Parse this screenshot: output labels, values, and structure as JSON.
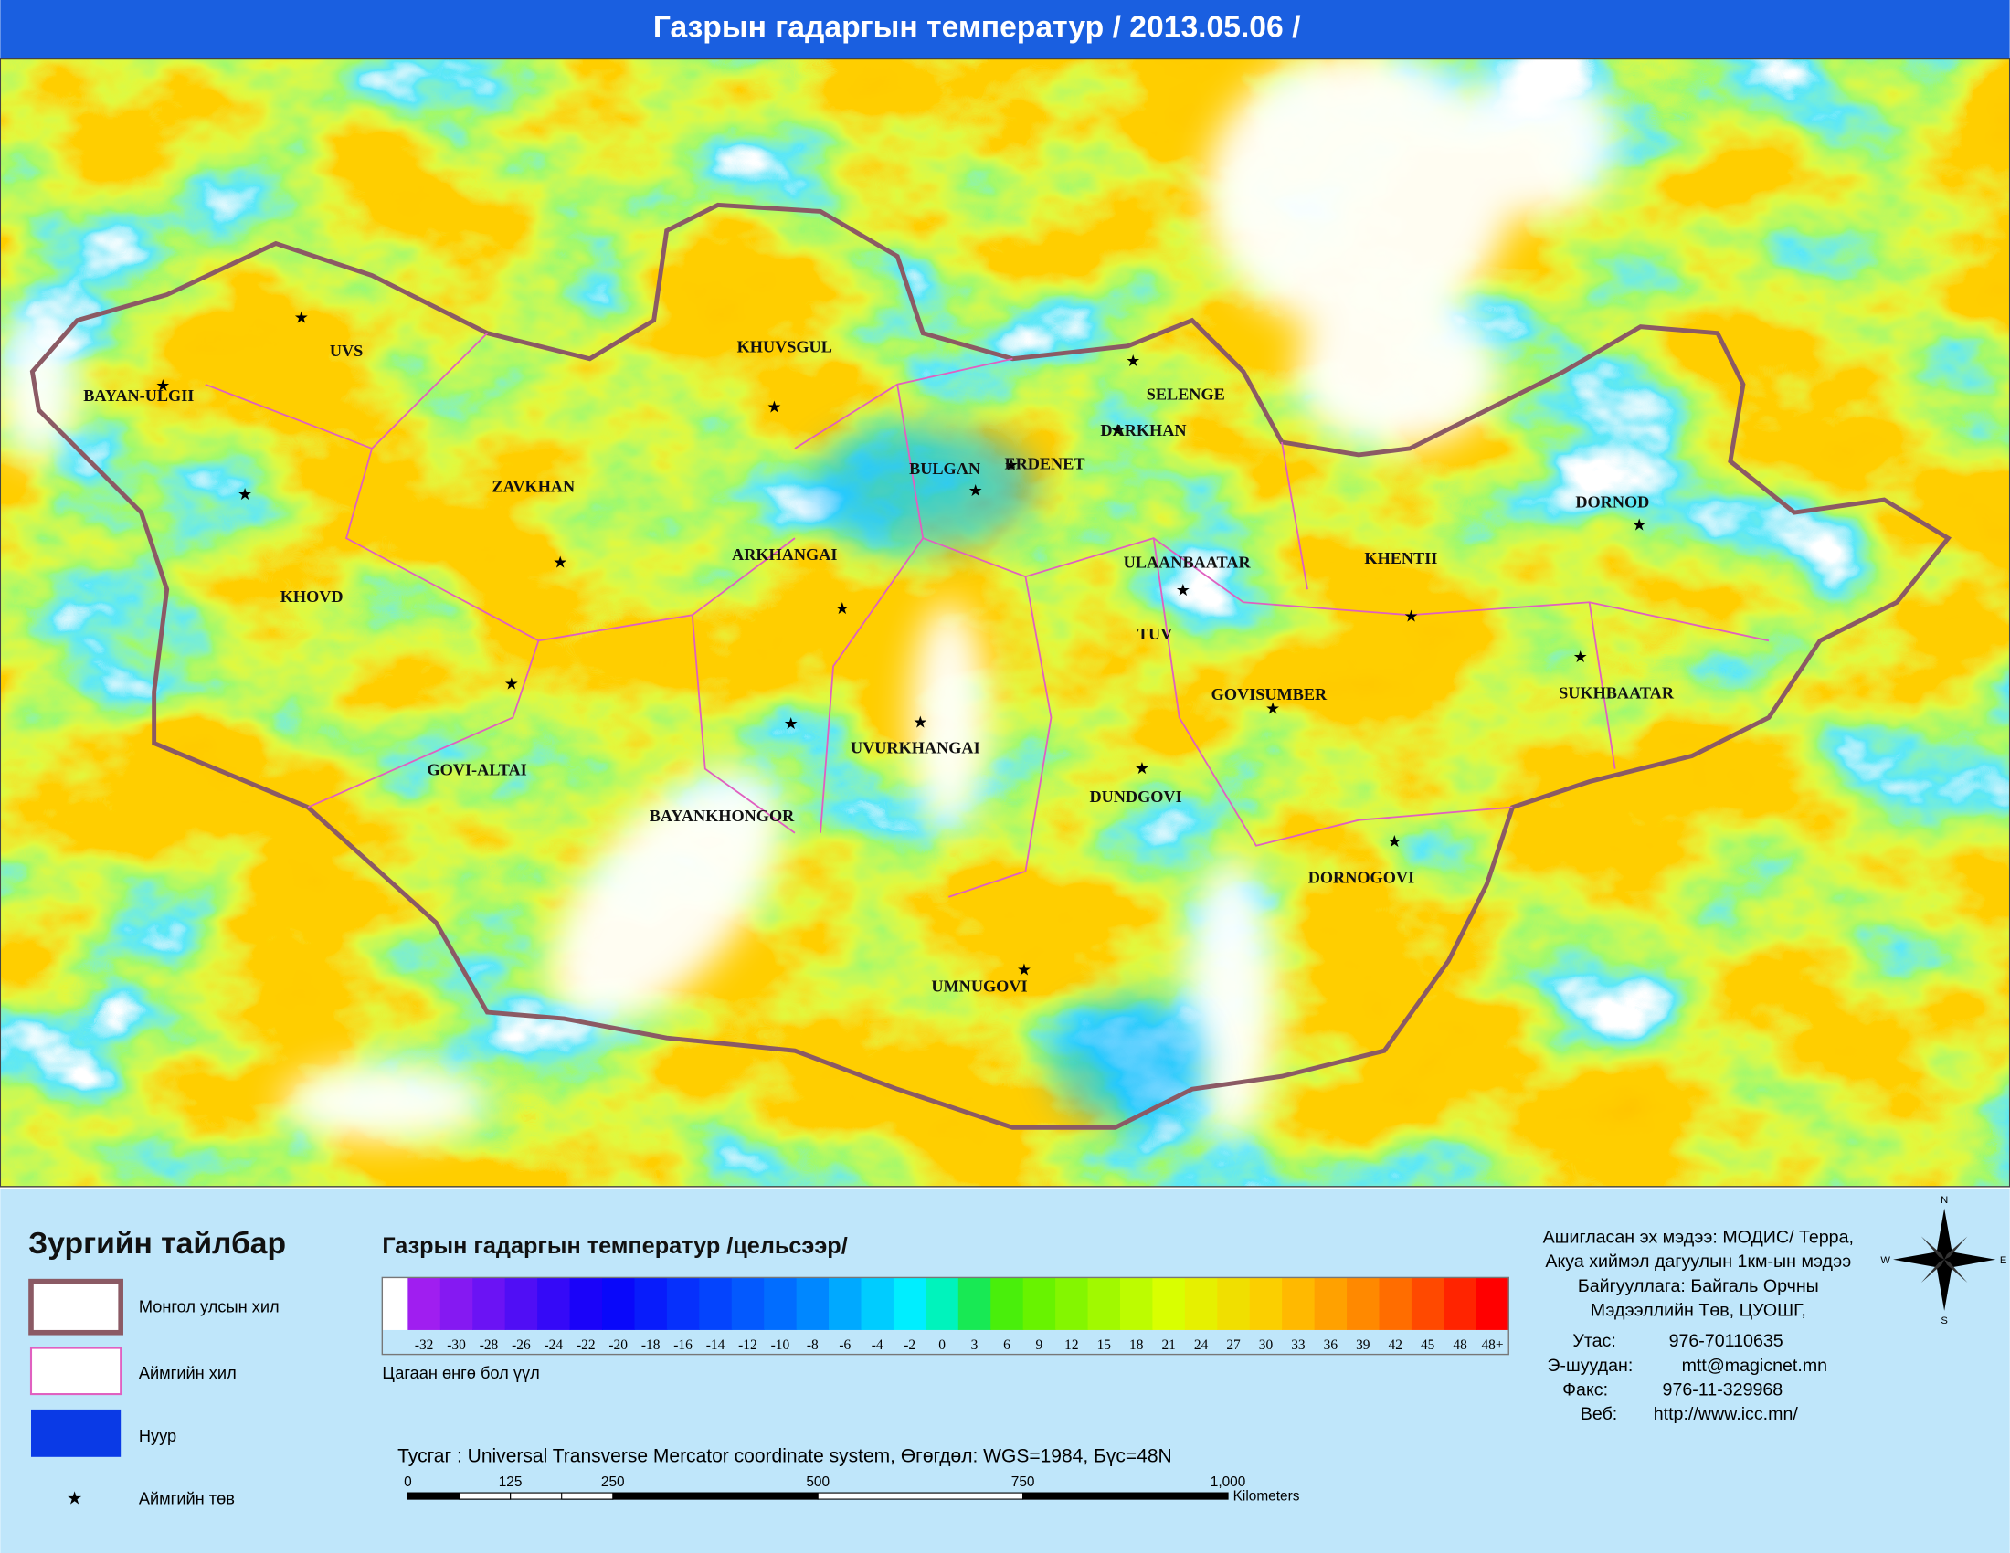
{
  "header": {
    "title": "Газрын гадаргын температур / 2013.05.06  /"
  },
  "map": {
    "labels": [
      "UVS",
      "BAYAN-ULGII",
      "KHUVSGUL",
      "ZAVKHAN",
      "KHOVD",
      "ARKHANGAI",
      "BULGAN",
      "ERDENET",
      "SELENGE",
      "DARKHAN",
      "ULAANBAATAR",
      "KHENTII",
      "DORNOD",
      "TUV",
      "GOVISUMBER",
      "SUKHBAATAR",
      "GOVI-ALTAI",
      "UVURKHANGAI",
      "BAYANKHONGOR",
      "DUNDGOVI",
      "DORNOGOVI",
      "UMNUGOVI"
    ]
  },
  "legend": {
    "title": "Зургийн тайлбар",
    "items": [
      "Монгол улсын хил",
      "Аймгийн хил",
      "Нуур",
      "Аймгийн төв"
    ]
  },
  "colorbar": {
    "title": "Газрын гадаргын температур /цельсээр/",
    "labels": [
      -32,
      -30,
      -28,
      -26,
      -24,
      -22,
      -20,
      -18,
      -16,
      -14,
      -12,
      -10,
      -8,
      -6,
      -4,
      -2,
      0,
      3,
      6,
      9,
      12,
      15,
      18,
      21,
      24,
      27,
      30,
      33,
      36,
      39,
      42,
      45,
      48,
      "48+"
    ],
    "note": "Цагаан өнгө бол үүл"
  },
  "projection": "Тусгаг : Universal Transverse Mercator coordinate system, Өгөгдөл: WGS=1984, Бүс=48N",
  "scale_bar": {
    "labels": [
      "0",
      "125",
      "250",
      "500",
      "750",
      "1,000"
    ],
    "unit": "Kilometers"
  },
  "info": {
    "lines": [
      "Ашигласан эх мэдээ: МОДИС/ Терра,",
      "Акуа хиймэл дагуулын 1км-ын мэдээ",
      "Байгууллага: Байгаль Орчны",
      "Мэдээллийн Төв, ЦУОШГ,"
    ],
    "contacts": [
      {
        "label": "Утас:",
        "value": "976-70110635"
      },
      {
        "label": "Э-шуудан:",
        "value": "mtt@magicnet.mn"
      },
      {
        "label": "Факс:",
        "value": "976-11-329968"
      },
      {
        "label": "Веб:",
        "value": "http://www.icc.mn/"
      }
    ]
  },
  "compass": {
    "n": "N",
    "e": "E",
    "s": "S",
    "w": "W"
  }
}
